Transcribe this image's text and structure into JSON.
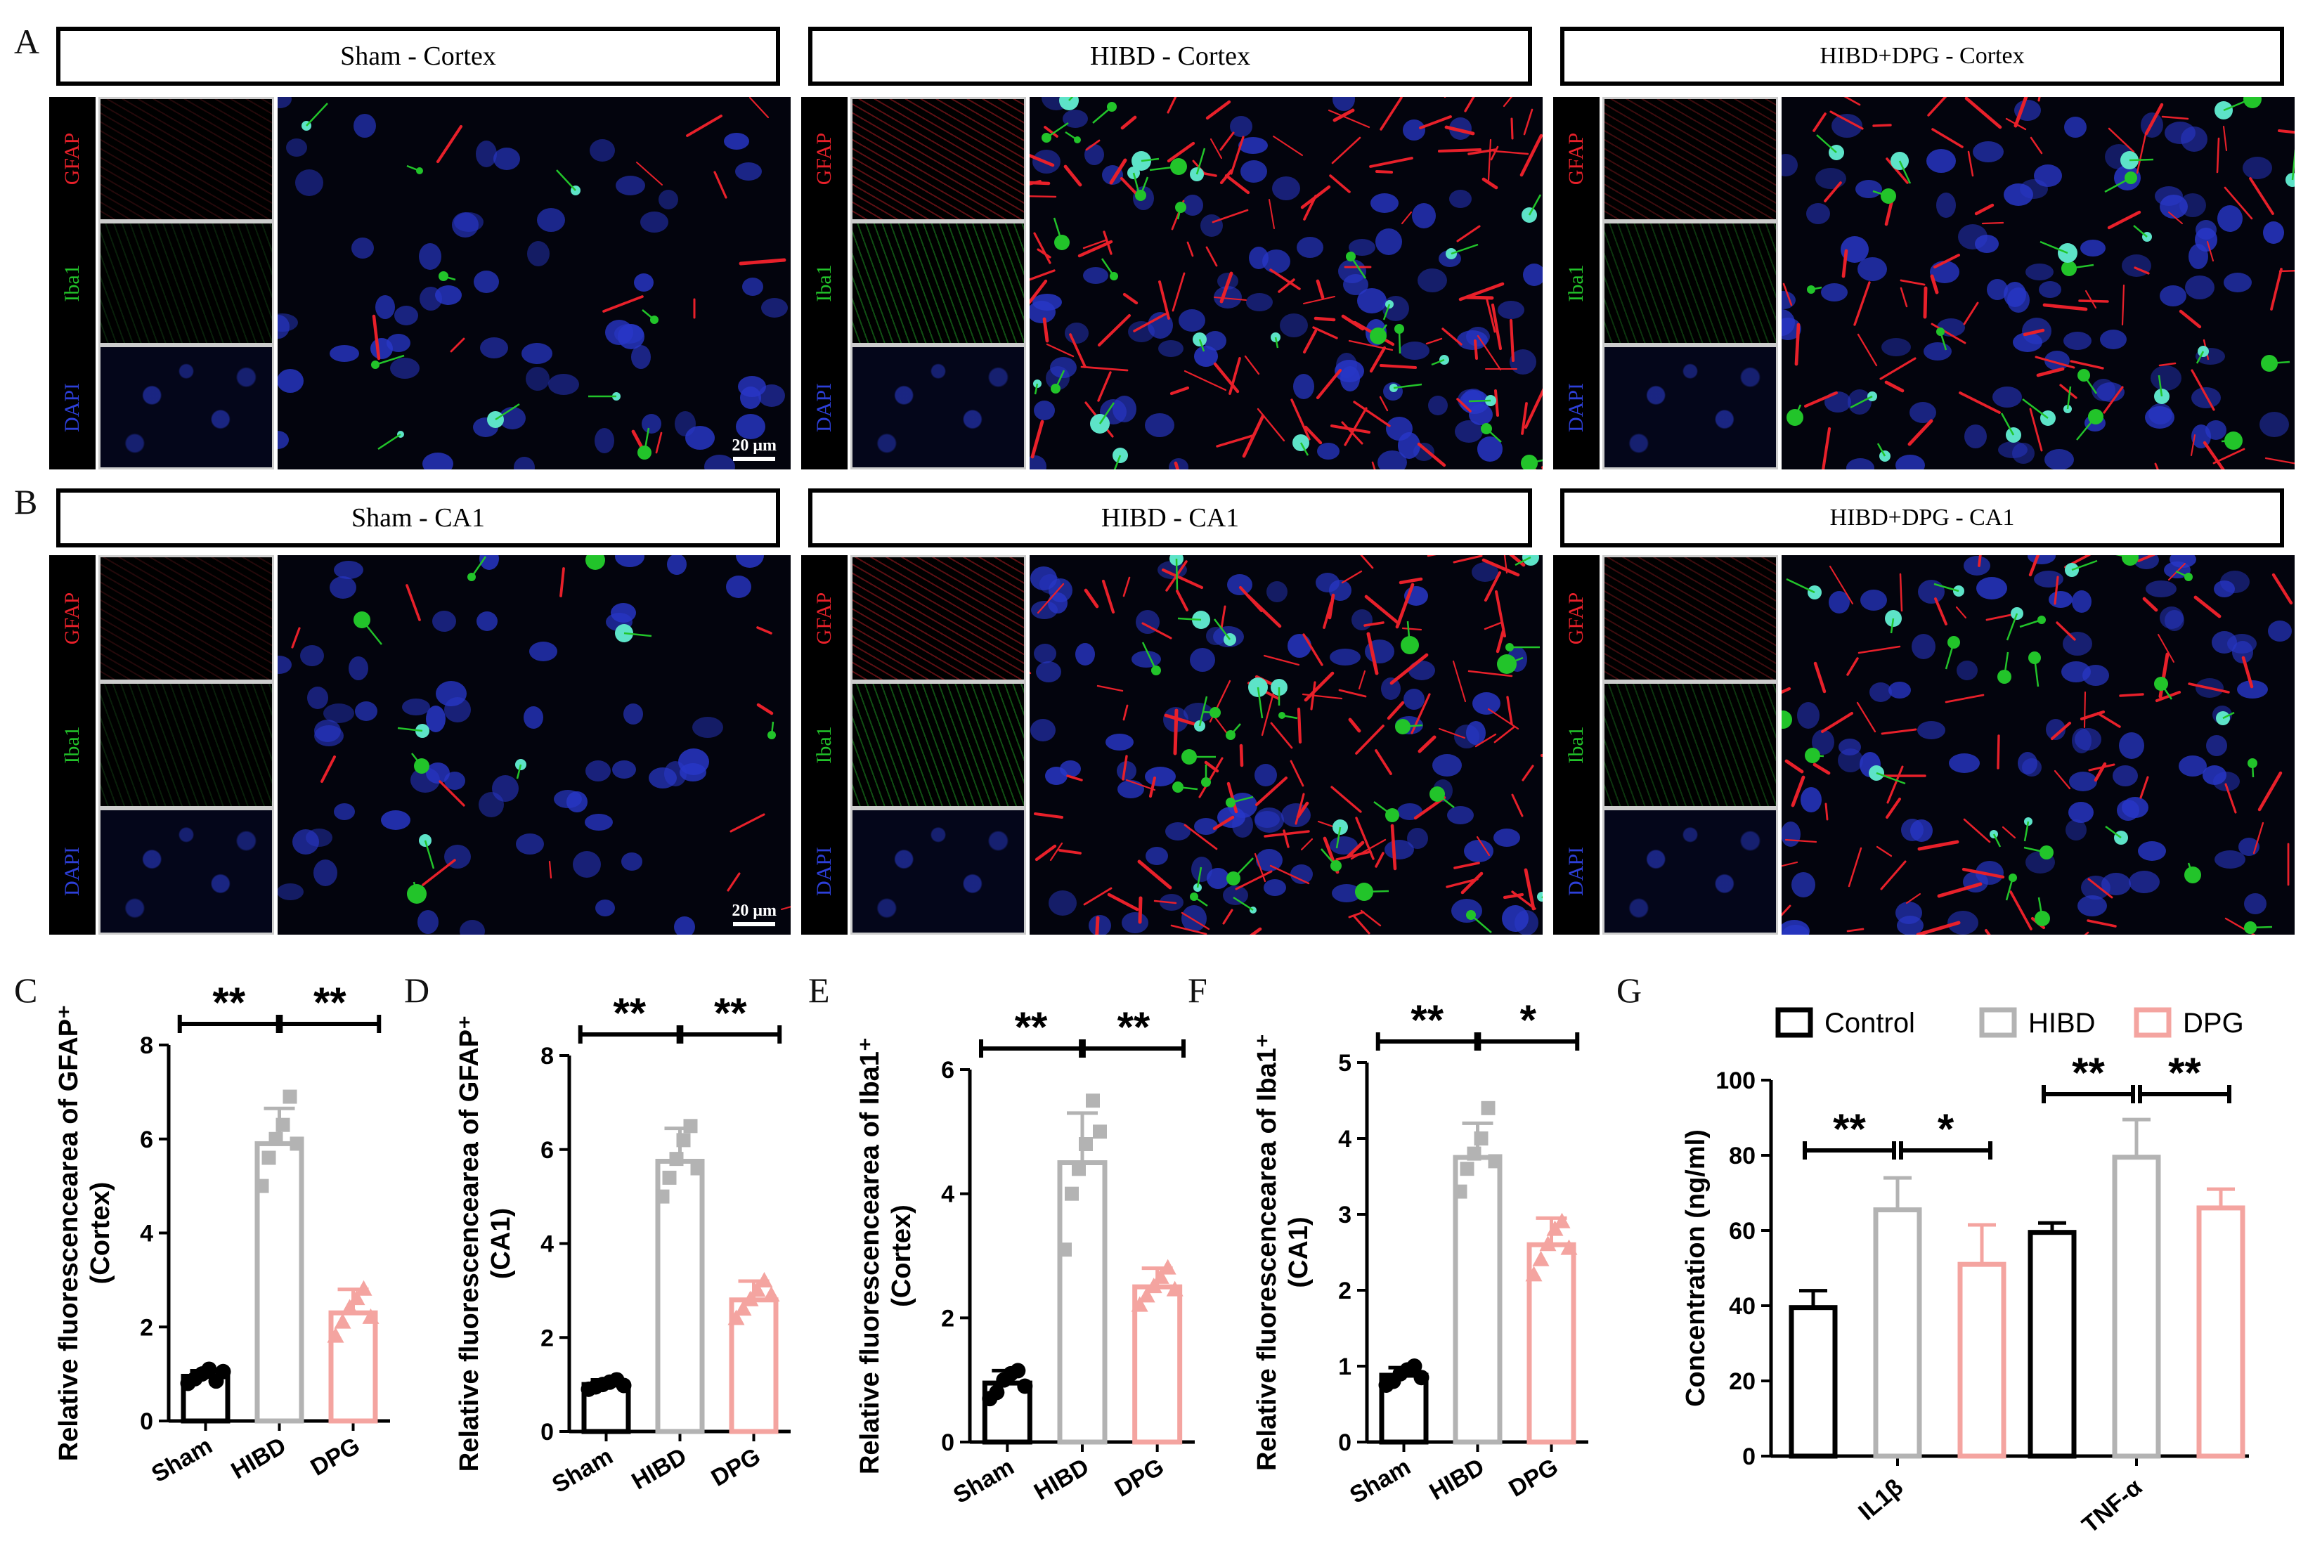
{
  "panel_labels": {
    "A": "A",
    "B": "B",
    "C": "C",
    "D": "D",
    "E": "E",
    "F": "F",
    "G": "G"
  },
  "channels": {
    "gfap": "GFAP",
    "iba1": "Iba1",
    "dapi": "DAPI"
  },
  "colors": {
    "gfap": "#e8202a",
    "iba1": "#22c42a",
    "dapi": "#2d3fd8",
    "sham": "#000000",
    "hibd": "#b3b3b3",
    "dpg": "#f4a4a0"
  },
  "micrographs": {
    "row_a": [
      {
        "title": "Sham - Cortex",
        "group": "sham",
        "scale_bar": "20 μm"
      },
      {
        "title": "HIBD - Cortex",
        "group": "hibd",
        "scale_bar": ""
      },
      {
        "title": "HIBD+DPG - Cortex",
        "group": "dpg",
        "scale_bar": ""
      }
    ],
    "row_b": [
      {
        "title": "Sham - CA1",
        "group": "sham",
        "scale_bar": "20 μm"
      },
      {
        "title": "HIBD - CA1",
        "group": "hibd",
        "scale_bar": ""
      },
      {
        "title": "HIBD+DPG - CA1",
        "group": "dpg",
        "scale_bar": ""
      }
    ]
  },
  "chart_data": [
    {
      "type": "bar",
      "panel": "C",
      "categories": [
        "Sham",
        "HIBD",
        "DPG"
      ],
      "values": [
        0.95,
        5.9,
        2.3
      ],
      "errors": [
        0.12,
        0.75,
        0.5
      ],
      "points": [
        [
          0.8,
          0.9,
          1.0,
          1.1,
          0.85,
          1.05
        ],
        [
          5.0,
          5.6,
          6.0,
          6.3,
          6.9,
          5.9
        ],
        [
          1.8,
          2.1,
          2.4,
          2.6,
          2.8,
          2.2
        ]
      ],
      "ylim": [
        0,
        8
      ],
      "yticks": [
        0,
        2,
        4,
        6,
        8
      ],
      "ylabel": "Relative fluorescencearea of GFAP⁺",
      "ylabel2": "(Cortex)",
      "significance": [
        {
          "label": "**",
          "from": 0,
          "to": 1
        },
        {
          "label": "**",
          "from": 1,
          "to": 2
        }
      ]
    },
    {
      "type": "bar",
      "panel": "D",
      "categories": [
        "Sham",
        "HIBD",
        "DPG"
      ],
      "values": [
        1.0,
        5.75,
        2.8
      ],
      "errors": [
        0.1,
        0.7,
        0.4
      ],
      "points": [
        [
          0.9,
          0.95,
          1.0,
          1.05,
          1.1,
          0.98
        ],
        [
          5.0,
          5.4,
          5.8,
          6.2,
          6.5,
          5.6
        ],
        [
          2.4,
          2.6,
          2.8,
          3.0,
          3.2,
          2.9
        ]
      ],
      "ylim": [
        0,
        8
      ],
      "yticks": [
        0,
        2,
        4,
        6,
        8
      ],
      "ylabel": "Relative fluorescencearea of GFAP⁺",
      "ylabel2": "(CA1)",
      "significance": [
        {
          "label": "**",
          "from": 0,
          "to": 1
        },
        {
          "label": "**",
          "from": 1,
          "to": 2
        }
      ]
    },
    {
      "type": "bar",
      "panel": "E",
      "categories": [
        "Sham",
        "HIBD",
        "DPG"
      ],
      "values": [
        0.95,
        4.5,
        2.5
      ],
      "errors": [
        0.2,
        0.8,
        0.3
      ],
      "points": [
        [
          0.7,
          0.8,
          1.0,
          1.1,
          1.15,
          0.9
        ],
        [
          3.1,
          4.0,
          4.4,
          4.8,
          5.5,
          5.0
        ],
        [
          2.2,
          2.35,
          2.5,
          2.65,
          2.8,
          2.45
        ]
      ],
      "ylim": [
        0,
        6
      ],
      "yticks": [
        0,
        2,
        4,
        6
      ],
      "ylabel": "Relative fluorescencearea of Iba1⁺",
      "ylabel2": "(Cortex)",
      "significance": [
        {
          "label": "**",
          "from": 0,
          "to": 1
        },
        {
          "label": "**",
          "from": 1,
          "to": 2
        }
      ]
    },
    {
      "type": "bar",
      "panel": "F",
      "categories": [
        "Sham",
        "HIBD",
        "DPG"
      ],
      "values": [
        0.88,
        3.75,
        2.6
      ],
      "errors": [
        0.1,
        0.45,
        0.35
      ],
      "points": [
        [
          0.75,
          0.8,
          0.9,
          0.95,
          1.0,
          0.85
        ],
        [
          3.3,
          3.6,
          3.8,
          4.0,
          4.4,
          3.7
        ],
        [
          2.2,
          2.4,
          2.6,
          2.8,
          2.9,
          2.55
        ]
      ],
      "ylim": [
        0,
        5
      ],
      "yticks": [
        0,
        1,
        2,
        3,
        4,
        5
      ],
      "ylabel": "Relative fluorescencearea of Iba1⁺",
      "ylabel2": "(CA1)",
      "significance": [
        {
          "label": "**",
          "from": 0,
          "to": 1
        },
        {
          "label": "*",
          "from": 1,
          "to": 2
        }
      ]
    },
    {
      "type": "bar",
      "panel": "G",
      "categories": [
        "IL1β",
        "TNF-α"
      ],
      "series": [
        {
          "name": "Control",
          "values": [
            39.5,
            59.5
          ],
          "errors": [
            4.5,
            2.5
          ]
        },
        {
          "name": "HIBD",
          "values": [
            65.5,
            79.5
          ],
          "errors": [
            8.5,
            10
          ]
        },
        {
          "name": "DPG",
          "values": [
            51,
            66
          ],
          "errors": [
            10.5,
            5
          ]
        }
      ],
      "ylim": [
        0,
        100
      ],
      "yticks": [
        0,
        20,
        40,
        60,
        80,
        100
      ],
      "ylabel": "Concentration (ng/ml)",
      "legend": "top",
      "significance": [
        {
          "label": "**",
          "category": 0,
          "from": 0,
          "to": 1
        },
        {
          "label": "*",
          "category": 0,
          "from": 1,
          "to": 2
        },
        {
          "label": "**",
          "category": 1,
          "from": 0,
          "to": 1
        },
        {
          "label": "**",
          "category": 1,
          "from": 1,
          "to": 2
        }
      ]
    }
  ]
}
